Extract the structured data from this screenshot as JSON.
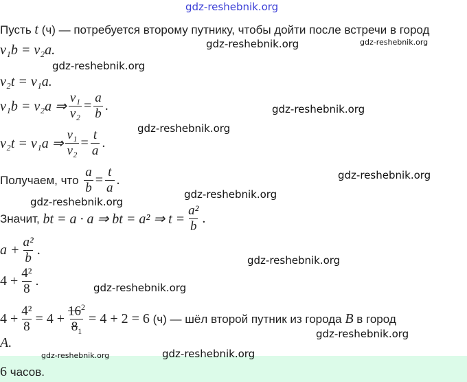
{
  "watermarks": {
    "top": "gdz-reshebnik.org",
    "text": "gdz-reshebnik.org",
    "color_top": "#3b3fd6"
  },
  "l1": {
    "a": "Пусть",
    "t": "t",
    "b": "(ч) — потребуется второму путнику, чтобы дойти после встречи в город"
  },
  "l2": "v₁b = v₂a.",
  "l3": "v₂t = v₁a.",
  "l4": {
    "eq": "v₁b = v₂a ⇒",
    "n1": "v₁",
    "d1": "v₂",
    "eqs": "=",
    "n2": "a",
    "d2": "b",
    "end": "."
  },
  "l5": {
    "eq": "v₂t = v₁a ⇒",
    "n1": "v₁",
    "d1": "v₂",
    "eqs": "=",
    "n2": "t",
    "d2": "a",
    "end": "."
  },
  "l6": {
    "text": "Получаем, что",
    "n1": "a",
    "d1": "b",
    "eqs": "=",
    "n2": "t",
    "d2": "a",
    "end": "."
  },
  "l7": {
    "text": "Значит,",
    "eq": "bt = a · a ⇒ bt = a² ⇒ t =",
    "n": "a²",
    "d": "b",
    "end": "."
  },
  "l8": {
    "a": "a +",
    "n": "a²",
    "d": "b",
    "end": "."
  },
  "l9": {
    "a": "4 +",
    "n": "4²",
    "d": "8",
    "end": "."
  },
  "l10": {
    "a": "4 +",
    "n1": "4²",
    "d1": "8",
    "b": "= 4 +",
    "n2": "16",
    "n2sup": "2",
    "d2": "8",
    "d2sub": "1",
    "c": "= 4 + 2 = 6",
    "d": "(ч) — шёл второй путник из города",
    "B": "B",
    "e": "в город"
  },
  "l11": "A.",
  "answer": {
    "value": "6",
    "text": "часов.",
    "bg": "#dcfbe9"
  }
}
